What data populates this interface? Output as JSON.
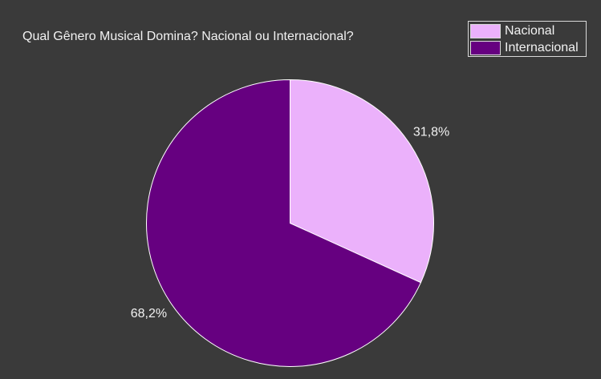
{
  "chart_data": {
    "type": "pie",
    "title": "Qual Gênero Musical Domina? Nacional ou Internacional?",
    "categories": [
      "Nacional",
      "Internacional"
    ],
    "values": [
      31.8,
      68.2
    ],
    "labels": [
      "31,8%",
      "68,2%"
    ],
    "colors": [
      "#ebb1fb",
      "#660080"
    ],
    "legend": {
      "position": "top-right",
      "entries": [
        "Nacional",
        "Internacional"
      ]
    },
    "start_angle": "12 o'clock",
    "direction": "clockwise"
  },
  "colors": {
    "background": "#3a3a3a",
    "text": "#f2f2f2",
    "slice_border": "#ffffff"
  }
}
